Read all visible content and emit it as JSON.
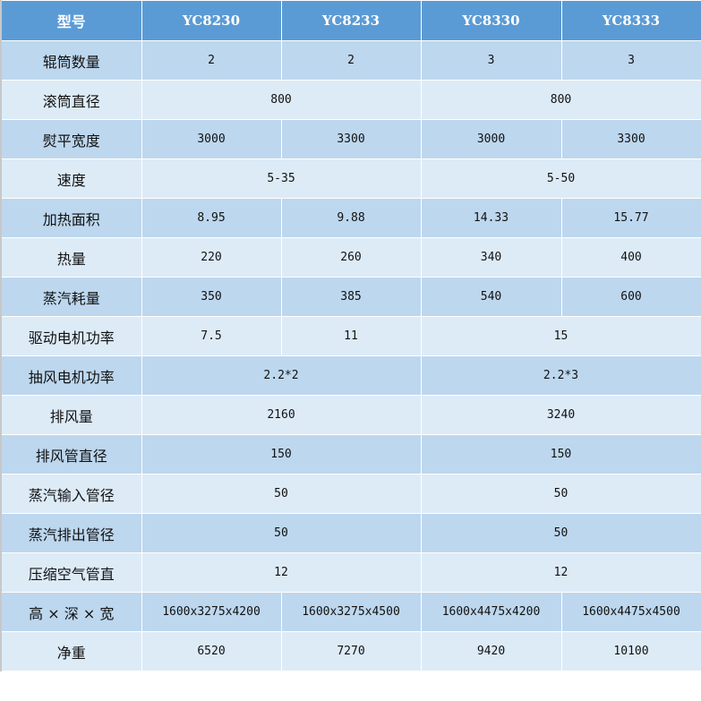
{
  "header": {
    "label": "型号",
    "models": [
      "YC8230",
      "YC8233",
      "YC8330",
      "YC8333"
    ]
  },
  "rows": [
    {
      "label": "辊筒数量",
      "cells": [
        {
          "v": "2",
          "span": 1
        },
        {
          "v": "2",
          "span": 1
        },
        {
          "v": "3",
          "span": 1
        },
        {
          "v": "3",
          "span": 1
        }
      ]
    },
    {
      "label": "滚筒直径",
      "cells": [
        {
          "v": "800",
          "span": 2
        },
        {
          "v": "800",
          "span": 2
        }
      ]
    },
    {
      "label": "熨平宽度",
      "cells": [
        {
          "v": "3000",
          "span": 1
        },
        {
          "v": "3300",
          "span": 1
        },
        {
          "v": "3000",
          "span": 1
        },
        {
          "v": "3300",
          "span": 1
        }
      ]
    },
    {
      "label": "速度",
      "cells": [
        {
          "v": "5-35",
          "span": 2
        },
        {
          "v": "5-50",
          "span": 2
        }
      ]
    },
    {
      "label": "加热面积",
      "cells": [
        {
          "v": "8.95",
          "span": 1
        },
        {
          "v": "9.88",
          "span": 1
        },
        {
          "v": "14.33",
          "span": 1
        },
        {
          "v": "15.77",
          "span": 1
        }
      ]
    },
    {
      "label": "热量",
      "cells": [
        {
          "v": "220",
          "span": 1
        },
        {
          "v": "260",
          "span": 1
        },
        {
          "v": "340",
          "span": 1
        },
        {
          "v": "400",
          "span": 1
        }
      ]
    },
    {
      "label": "蒸汽耗量",
      "cells": [
        {
          "v": "350",
          "span": 1
        },
        {
          "v": "385",
          "span": 1
        },
        {
          "v": "540",
          "span": 1
        },
        {
          "v": "600",
          "span": 1
        }
      ]
    },
    {
      "label": "驱动电机功率",
      "cells": [
        {
          "v": "7.5",
          "span": 1
        },
        {
          "v": "11",
          "span": 1
        },
        {
          "v": "15",
          "span": 2
        }
      ]
    },
    {
      "label": "抽风电机功率",
      "cells": [
        {
          "v": "2.2*2",
          "span": 2
        },
        {
          "v": "2.2*3",
          "span": 2
        }
      ]
    },
    {
      "label": "排风量",
      "cells": [
        {
          "v": "2160",
          "span": 2
        },
        {
          "v": "3240",
          "span": 2
        }
      ]
    },
    {
      "label": "排风管直径",
      "cells": [
        {
          "v": "150",
          "span": 2
        },
        {
          "v": "150",
          "span": 2
        }
      ]
    },
    {
      "label": "蒸汽输入管径",
      "cells": [
        {
          "v": "50",
          "span": 2
        },
        {
          "v": "50",
          "span": 2
        }
      ]
    },
    {
      "label": "蒸汽排出管径",
      "cells": [
        {
          "v": "50",
          "span": 2
        },
        {
          "v": "50",
          "span": 2
        }
      ]
    },
    {
      "label": "压缩空气管直",
      "cells": [
        {
          "v": "12",
          "span": 2
        },
        {
          "v": "12",
          "span": 2
        }
      ]
    },
    {
      "label": "高 × 深 × 宽",
      "cells": [
        {
          "v": "1600x3275x4200",
          "span": 1
        },
        {
          "v": "1600x3275x4500",
          "span": 1
        },
        {
          "v": "1600x4475x4200",
          "span": 1
        },
        {
          "v": "1600x4475x4500",
          "span": 1
        }
      ]
    },
    {
      "label": "净重",
      "cells": [
        {
          "v": "6520",
          "span": 1
        },
        {
          "v": "7270",
          "span": 1
        },
        {
          "v": "9420",
          "span": 1
        },
        {
          "v": "10100",
          "span": 1
        }
      ]
    }
  ],
  "colors": {
    "header": "#5B9BD5",
    "row_dark": "#BDD7EE",
    "row_light": "#DDEBF7"
  }
}
